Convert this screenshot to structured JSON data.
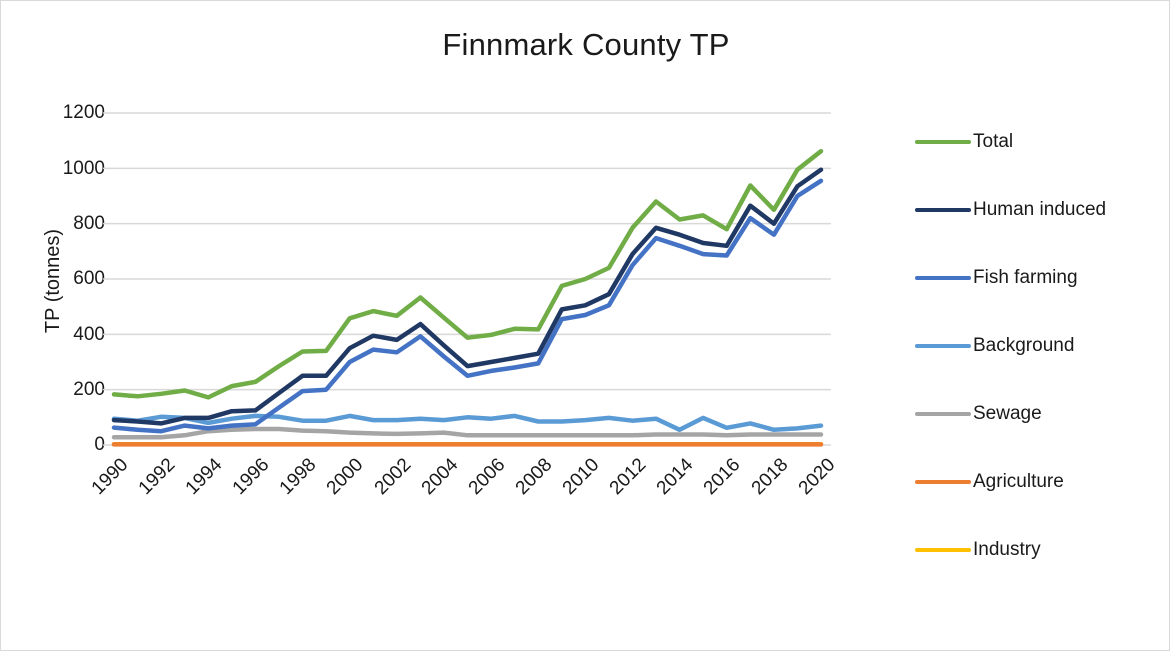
{
  "chart_data": {
    "type": "line",
    "title": "Finnmark County TP",
    "xlabel": "",
    "ylabel": "TP (tonnes)",
    "ylim": [
      0,
      1200
    ],
    "yticks": [
      0,
      200,
      400,
      600,
      800,
      1000,
      1200
    ],
    "grid": true,
    "legend_position": "right",
    "x": [
      1990,
      1991,
      1992,
      1993,
      1994,
      1995,
      1996,
      1997,
      1998,
      1999,
      2000,
      2001,
      2002,
      2003,
      2004,
      2005,
      2006,
      2007,
      2008,
      2009,
      2010,
      2011,
      2012,
      2013,
      2014,
      2015,
      2016,
      2017,
      2018,
      2019,
      2020
    ],
    "xtick_labels": [
      "1990",
      "1992",
      "1994",
      "1996",
      "1998",
      "2000",
      "2002",
      "2004",
      "2006",
      "2008",
      "2010",
      "2012",
      "2014",
      "2016",
      "2018",
      "2020"
    ],
    "series": [
      {
        "name": "Total",
        "color": "#70ad47",
        "values": [
          183,
          176,
          185,
          197,
          172,
          213,
          228,
          285,
          338,
          340,
          458,
          484,
          467,
          533,
          460,
          388,
          398,
          420,
          418,
          575,
          600,
          640,
          785,
          880,
          815,
          830,
          780,
          938,
          850,
          995,
          1062
        ]
      },
      {
        "name": "Human induced",
        "color": "#203864",
        "values": [
          90,
          85,
          78,
          98,
          98,
          122,
          125,
          188,
          250,
          250,
          350,
          395,
          380,
          437,
          360,
          285,
          300,
          315,
          330,
          490,
          505,
          545,
          690,
          785,
          760,
          730,
          720,
          865,
          800,
          935,
          995
        ]
      },
      {
        "name": "Fish farming",
        "color": "#4472c4",
        "values": [
          63,
          55,
          50,
          70,
          60,
          70,
          75,
          135,
          195,
          200,
          300,
          345,
          335,
          393,
          320,
          250,
          268,
          280,
          295,
          455,
          470,
          505,
          650,
          748,
          720,
          690,
          685,
          820,
          760,
          900,
          955
        ]
      },
      {
        "name": "Background",
        "color": "#5b9bd5",
        "values": [
          95,
          88,
          102,
          98,
          80,
          95,
          105,
          102,
          88,
          88,
          105,
          90,
          90,
          95,
          90,
          100,
          95,
          105,
          85,
          85,
          90,
          98,
          88,
          95,
          55,
          98,
          62,
          78,
          55,
          60,
          70
        ]
      },
      {
        "name": "Sewage",
        "color": "#a5a5a5",
        "values": [
          28,
          28,
          28,
          35,
          50,
          55,
          58,
          58,
          52,
          50,
          45,
          42,
          40,
          42,
          45,
          35,
          35,
          35,
          35,
          35,
          35,
          35,
          35,
          38,
          38,
          38,
          35,
          38,
          38,
          38,
          38
        ]
      },
      {
        "name": "Agriculture",
        "color": "#ed7d31",
        "values": [
          2,
          2,
          2,
          2,
          2,
          2,
          2,
          2,
          2,
          2,
          2,
          2,
          2,
          2,
          2,
          2,
          2,
          2,
          2,
          2,
          2,
          2,
          2,
          2,
          2,
          2,
          2,
          2,
          2,
          2,
          2
        ]
      },
      {
        "name": "Industry",
        "color": "#ffc000",
        "values": [
          3,
          3,
          3,
          3,
          3,
          3,
          3,
          3,
          3,
          3,
          3,
          3,
          3,
          3,
          3,
          3,
          3,
          3,
          3,
          3,
          3,
          3,
          3,
          3,
          3,
          3,
          3,
          3,
          3,
          3,
          3
        ]
      }
    ]
  },
  "legend": {
    "items": [
      {
        "label": "Total",
        "color": "#70ad47"
      },
      {
        "label": "Human induced",
        "color": "#203864"
      },
      {
        "label": "Fish farming",
        "color": "#4472c4"
      },
      {
        "label": "Background",
        "color": "#5b9bd5"
      },
      {
        "label": "Sewage",
        "color": "#a5a5a5"
      },
      {
        "label": "Agriculture",
        "color": "#ed7d31"
      },
      {
        "label": "Industry",
        "color": "#ffc000"
      }
    ]
  },
  "axes": {
    "y_ticks": [
      "1200",
      "1000",
      "800",
      "600",
      "400",
      "200",
      "0"
    ],
    "x_ticks": [
      "1990",
      "1992",
      "1994",
      "1996",
      "1998",
      "2000",
      "2002",
      "2004",
      "2006",
      "2008",
      "2010",
      "2012",
      "2014",
      "2016",
      "2018",
      "2020"
    ]
  }
}
